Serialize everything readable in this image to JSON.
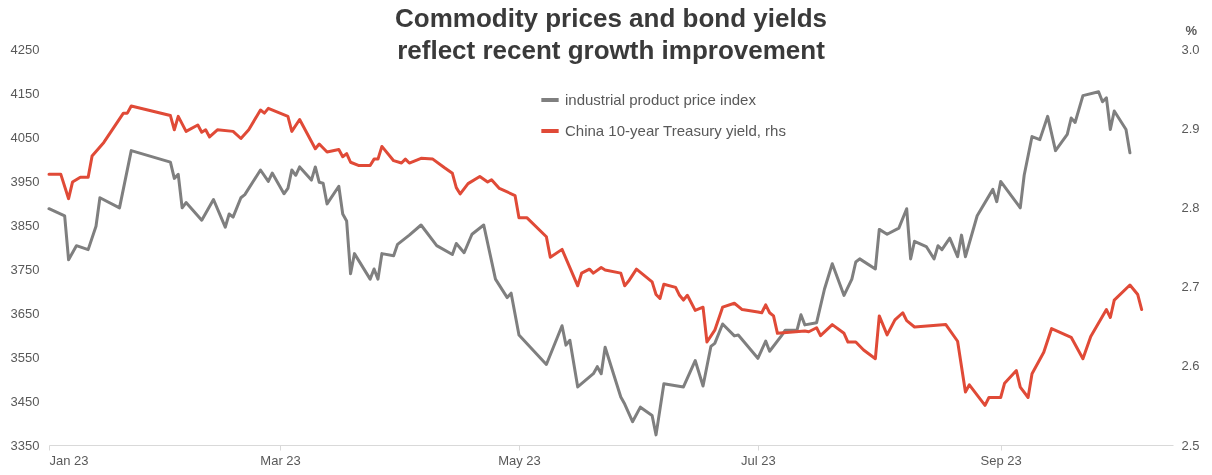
{
  "chart_data": {
    "type": "line",
    "title": "Commodity prices and bond yields reflect recent growth improvement",
    "y2label": "%",
    "xlim": [
      "2023-01-01",
      "2023-10-15"
    ],
    "xticks": [
      {
        "value": "2023-01-01",
        "label": "Jan 23"
      },
      {
        "value": "2023-03-01",
        "label": "Mar 23"
      },
      {
        "value": "2023-05-01",
        "label": "May 23"
      },
      {
        "value": "2023-07-01",
        "label": "Jul 23"
      },
      {
        "value": "2023-09-01",
        "label": "Sep 23"
      }
    ],
    "ylim": [
      3350,
      4250
    ],
    "yticks": [
      3350,
      3450,
      3550,
      3650,
      3750,
      3850,
      3950,
      4050,
      4150,
      4250
    ],
    "y2lim": [
      2.5,
      3.0
    ],
    "y2ticks": [
      2.5,
      2.6,
      2.7,
      2.8,
      2.9,
      {
        "value": 3.0,
        "label": "3.0"
      }
    ],
    "legend": "top",
    "line_style": "solid",
    "series": [
      {
        "name": "industrial product price index",
        "color": "#7f7f7f",
        "x": [
          "2023-01-01",
          "2023-01-05",
          "2023-01-06",
          "2023-01-08",
          "2023-01-11",
          "2023-01-13",
          "2023-01-14",
          "2023-01-19",
          "2023-01-22",
          "2023-02-01",
          "2023-02-02",
          "2023-02-03",
          "2023-02-04",
          "2023-02-05",
          "2023-02-09",
          "2023-02-12",
          "2023-02-15",
          "2023-02-16",
          "2023-02-17",
          "2023-02-19",
          "2023-02-20",
          "2023-02-24",
          "2023-02-26",
          "2023-02-27",
          "2023-03-02",
          "2023-03-03",
          "2023-03-04",
          "2023-03-05",
          "2023-03-06",
          "2023-03-09",
          "2023-03-10",
          "2023-03-11",
          "2023-03-12",
          "2023-03-13",
          "2023-03-16",
          "2023-03-17",
          "2023-03-18",
          "2023-03-19",
          "2023-03-20",
          "2023-03-24",
          "2023-03-25",
          "2023-03-26",
          "2023-03-27",
          "2023-03-30",
          "2023-03-31",
          "2023-04-03",
          "2023-04-06",
          "2023-04-10",
          "2023-04-14",
          "2023-04-15",
          "2023-04-17",
          "2023-04-19",
          "2023-04-22",
          "2023-04-25",
          "2023-04-28",
          "2023-04-29",
          "2023-05-01",
          "2023-05-08",
          "2023-05-12",
          "2023-05-13",
          "2023-05-14",
          "2023-05-16",
          "2023-05-20",
          "2023-05-21",
          "2023-05-22",
          "2023-05-23",
          "2023-05-27",
          "2023-05-28",
          "2023-05-30",
          "2023-06-01",
          "2023-06-04",
          "2023-06-05",
          "2023-06-07",
          "2023-06-12",
          "2023-06-15",
          "2023-06-17",
          "2023-06-19",
          "2023-06-20",
          "2023-06-22",
          "2023-06-25",
          "2023-06-26",
          "2023-07-01",
          "2023-07-03",
          "2023-07-04",
          "2023-07-07",
          "2023-07-08",
          "2023-07-11",
          "2023-07-12",
          "2023-07-13",
          "2023-07-16",
          "2023-07-18",
          "2023-07-20",
          "2023-07-23",
          "2023-07-25",
          "2023-07-26",
          "2023-07-27",
          "2023-07-31",
          "2023-08-01",
          "2023-08-03",
          "2023-08-06",
          "2023-08-08",
          "2023-08-09",
          "2023-08-10",
          "2023-08-13",
          "2023-08-15",
          "2023-08-16",
          "2023-08-17",
          "2023-08-19",
          "2023-08-21",
          "2023-08-22",
          "2023-08-23",
          "2023-08-26",
          "2023-08-30",
          "2023-08-31",
          "2023-09-01",
          "2023-09-06",
          "2023-09-07",
          "2023-09-09",
          "2023-09-11",
          "2023-09-13",
          "2023-09-15",
          "2023-09-18",
          "2023-09-19",
          "2023-09-20",
          "2023-09-22",
          "2023-09-26",
          "2023-09-27",
          "2023-09-28",
          "2023-09-29",
          "2023-09-30",
          "2023-10-03",
          "2023-10-04"
        ],
        "values": [
          3887,
          3871,
          3771,
          3803,
          3794,
          3847,
          3912,
          3889,
          4019,
          3993,
          3956,
          3965,
          3889,
          3901,
          3861,
          3908,
          3845,
          3875,
          3868,
          3912,
          3919,
          3975,
          3949,
          3968,
          3921,
          3933,
          3975,
          3963,
          3982,
          3952,
          3982,
          3947,
          3945,
          3898,
          3938,
          3875,
          3859,
          3739,
          3785,
          3727,
          3750,
          3727,
          3785,
          3780,
          3806,
          3827,
          3850,
          3803,
          3783,
          3808,
          3787,
          3829,
          3850,
          3727,
          3685,
          3695,
          3600,
          3533,
          3621,
          3577,
          3588,
          3482,
          3512,
          3528,
          3512,
          3572,
          3459,
          3443,
          3403,
          3436,
          3417,
          3373,
          3489,
          3482,
          3542,
          3484,
          3574,
          3581,
          3625,
          3598,
          3600,
          3547,
          3586,
          3563,
          3598,
          3611,
          3611,
          3646,
          3623,
          3628,
          3704,
          3762,
          3690,
          3727,
          3766,
          3773,
          3750,
          3840,
          3829,
          3843,
          3887,
          3773,
          3813,
          3801,
          3773,
          3803,
          3794,
          3820,
          3778,
          3827,
          3778,
          3871,
          3931,
          3903,
          3949,
          3889,
          3963,
          4051,
          4044,
          4097,
          4019,
          4056,
          4093,
          4083,
          4144,
          4153,
          4130,
          4139,
          4067,
          4109,
          4067,
          4014
        ]
      },
      {
        "name": "China 10-year Treasury yield, rhs",
        "color": "#e04a37",
        "axis": "y2",
        "x": [
          "2023-01-01",
          "2023-01-04",
          "2023-01-06",
          "2023-01-07",
          "2023-01-09",
          "2023-01-11",
          "2023-01-12",
          "2023-01-15",
          "2023-01-20",
          "2023-01-21",
          "2023-01-22",
          "2023-02-01",
          "2023-02-02",
          "2023-02-03",
          "2023-02-05",
          "2023-02-08",
          "2023-02-09",
          "2023-02-10",
          "2023-02-11",
          "2023-02-13",
          "2023-02-17",
          "2023-02-19",
          "2023-02-21",
          "2023-02-24",
          "2023-02-25",
          "2023-02-26",
          "2023-03-03",
          "2023-03-04",
          "2023-03-06",
          "2023-03-10",
          "2023-03-11",
          "2023-03-13",
          "2023-03-16",
          "2023-03-17",
          "2023-03-18",
          "2023-03-19",
          "2023-03-21",
          "2023-03-24",
          "2023-03-25",
          "2023-03-26",
          "2023-03-27",
          "2023-03-30",
          "2023-04-01",
          "2023-04-02",
          "2023-04-03",
          "2023-04-06",
          "2023-04-09",
          "2023-04-12",
          "2023-04-14",
          "2023-04-15",
          "2023-04-16",
          "2023-04-18",
          "2023-04-21",
          "2023-04-23",
          "2023-04-24",
          "2023-04-26",
          "2023-04-30",
          "2023-05-01",
          "2023-05-03",
          "2023-05-08",
          "2023-05-09",
          "2023-05-12",
          "2023-05-16",
          "2023-05-17",
          "2023-05-19",
          "2023-05-20",
          "2023-05-22",
          "2023-05-23",
          "2023-05-27",
          "2023-05-28",
          "2023-05-29",
          "2023-05-31",
          "2023-06-04",
          "2023-06-05",
          "2023-06-06",
          "2023-06-07",
          "2023-06-10",
          "2023-06-11",
          "2023-06-12",
          "2023-06-13",
          "2023-06-15",
          "2023-06-17",
          "2023-06-18",
          "2023-06-20",
          "2023-06-22",
          "2023-06-25",
          "2023-06-27",
          "2023-07-01",
          "2023-07-02",
          "2023-07-03",
          "2023-07-04",
          "2023-07-05",
          "2023-07-06",
          "2023-07-13",
          "2023-07-14",
          "2023-07-16",
          "2023-07-17",
          "2023-07-20",
          "2023-07-23",
          "2023-07-24",
          "2023-07-26",
          "2023-07-28",
          "2023-07-31",
          "2023-08-01",
          "2023-08-03",
          "2023-08-05",
          "2023-08-07",
          "2023-08-08",
          "2023-08-10",
          "2023-08-18",
          "2023-08-21",
          "2023-08-23",
          "2023-08-24",
          "2023-08-28",
          "2023-08-29",
          "2023-09-01",
          "2023-09-02",
          "2023-09-05",
          "2023-09-06",
          "2023-09-08",
          "2023-09-09",
          "2023-09-12",
          "2023-09-14",
          "2023-09-19",
          "2023-09-22",
          "2023-09-24",
          "2023-09-28",
          "2023-09-29",
          "2023-09-30",
          "2023-10-04",
          "2023-10-06",
          "2023-10-07"
        ],
        "values": [
          2.842,
          2.842,
          2.811,
          2.832,
          2.838,
          2.838,
          2.865,
          2.882,
          2.919,
          2.919,
          2.928,
          2.916,
          2.898,
          2.915,
          2.896,
          2.904,
          2.895,
          2.898,
          2.889,
          2.898,
          2.896,
          2.887,
          2.898,
          2.923,
          2.919,
          2.925,
          2.915,
          2.896,
          2.911,
          2.874,
          2.88,
          2.87,
          2.873,
          2.864,
          2.868,
          2.857,
          2.853,
          2.853,
          2.861,
          2.861,
          2.877,
          2.859,
          2.856,
          2.861,
          2.856,
          2.862,
          2.861,
          2.85,
          2.843,
          2.825,
          2.817,
          2.83,
          2.839,
          2.832,
          2.835,
          2.824,
          2.815,
          2.787,
          2.787,
          2.763,
          2.737,
          2.747,
          2.701,
          2.717,
          2.722,
          2.717,
          2.724,
          2.721,
          2.717,
          2.701,
          2.707,
          2.722,
          2.706,
          2.69,
          2.685,
          2.703,
          2.699,
          2.689,
          2.683,
          2.689,
          2.67,
          2.674,
          2.63,
          2.645,
          2.674,
          2.679,
          2.671,
          2.668,
          2.667,
          2.677,
          2.667,
          2.663,
          2.641,
          2.644,
          2.643,
          2.648,
          2.638,
          2.652,
          2.641,
          2.63,
          2.63,
          2.62,
          2.609,
          2.663,
          2.639,
          2.658,
          2.667,
          2.657,
          2.649,
          2.652,
          2.631,
          2.567,
          2.576,
          2.55,
          2.56,
          2.56,
          2.578,
          2.594,
          2.573,
          2.56,
          2.59,
          2.617,
          2.647,
          2.636,
          2.609,
          2.637,
          2.671,
          2.661,
          2.683,
          2.702,
          2.69,
          2.671
        ]
      }
    ]
  }
}
